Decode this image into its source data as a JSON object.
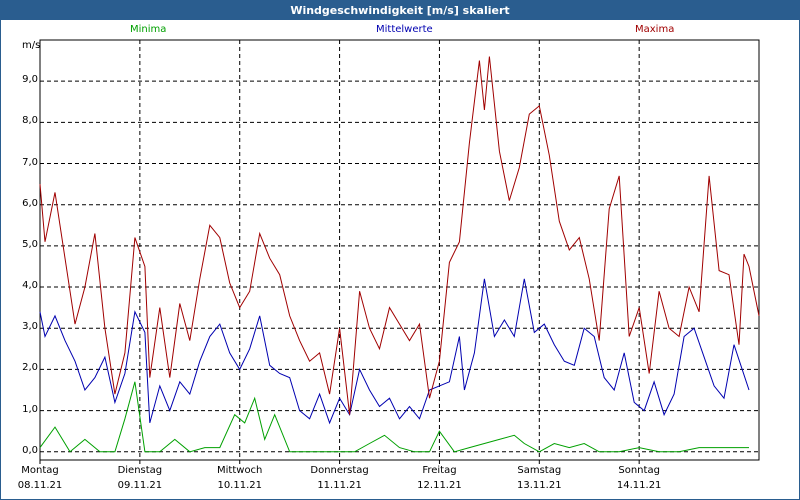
{
  "window": {
    "title": "Windgeschwindigkeit [m/s] skaliert"
  },
  "chart_data": {
    "type": "line",
    "title": "Windgeschwindigkeit [m/s] skaliert",
    "ylabel": "m/s",
    "ylim": [
      -0.2,
      10.0
    ],
    "y_ticks": [
      "0,0",
      "1,0",
      "2,0",
      "3,0",
      "4,0",
      "5,0",
      "6,0",
      "7,0",
      "8,0",
      "9,0"
    ],
    "x_days": [
      {
        "day": "Montag",
        "date": "08.11.21"
      },
      {
        "day": "Dienstag",
        "date": "09.11.21"
      },
      {
        "day": "Mittwoch",
        "date": "10.11.21"
      },
      {
        "day": "Donnerstag",
        "date": "11.11.21"
      },
      {
        "day": "Freitag",
        "date": "12.11.21"
      },
      {
        "day": "Samstag",
        "date": "13.11.21"
      },
      {
        "day": "Sonntag",
        "date": "14.11.21"
      }
    ],
    "x_range_days": [
      0,
      7.2
    ],
    "grid": true,
    "series": [
      {
        "name": "Minima",
        "color": "#00a000",
        "points": [
          [
            0,
            0.1
          ],
          [
            0.15,
            0.6
          ],
          [
            0.3,
            0.0
          ],
          [
            0.45,
            0.3
          ],
          [
            0.6,
            0.0
          ],
          [
            0.75,
            0.0
          ],
          [
            0.85,
            0.8
          ],
          [
            0.95,
            1.7
          ],
          [
            1.05,
            0.0
          ],
          [
            1.2,
            0.0
          ],
          [
            1.35,
            0.3
          ],
          [
            1.5,
            0.0
          ],
          [
            1.65,
            0.1
          ],
          [
            1.8,
            0.1
          ],
          [
            1.95,
            0.9
          ],
          [
            2.05,
            0.7
          ],
          [
            2.15,
            1.3
          ],
          [
            2.25,
            0.3
          ],
          [
            2.35,
            0.9
          ],
          [
            2.5,
            0.0
          ],
          [
            2.7,
            0.0
          ],
          [
            2.85,
            0.0
          ],
          [
            3.0,
            0.0
          ],
          [
            3.15,
            0.0
          ],
          [
            3.3,
            0.2
          ],
          [
            3.45,
            0.4
          ],
          [
            3.6,
            0.1
          ],
          [
            3.75,
            0.0
          ],
          [
            3.9,
            0.0
          ],
          [
            4.0,
            0.5
          ],
          [
            4.15,
            0.0
          ],
          [
            4.3,
            0.1
          ],
          [
            4.45,
            0.2
          ],
          [
            4.6,
            0.3
          ],
          [
            4.75,
            0.4
          ],
          [
            4.85,
            0.2
          ],
          [
            5.0,
            0.0
          ],
          [
            5.15,
            0.2
          ],
          [
            5.3,
            0.1
          ],
          [
            5.45,
            0.2
          ],
          [
            5.6,
            0.0
          ],
          [
            5.8,
            0.0
          ],
          [
            6.0,
            0.1
          ],
          [
            6.2,
            0.0
          ],
          [
            6.4,
            0.0
          ],
          [
            6.6,
            0.1
          ],
          [
            6.8,
            0.1
          ],
          [
            7.0,
            0.1
          ],
          [
            7.1,
            0.1
          ]
        ]
      },
      {
        "name": "Mittelwerte",
        "color": "#0000b0",
        "points": [
          [
            0,
            3.4
          ],
          [
            0.05,
            2.8
          ],
          [
            0.15,
            3.3
          ],
          [
            0.25,
            2.7
          ],
          [
            0.35,
            2.2
          ],
          [
            0.45,
            1.5
          ],
          [
            0.55,
            1.8
          ],
          [
            0.65,
            2.3
          ],
          [
            0.75,
            1.2
          ],
          [
            0.85,
            1.9
          ],
          [
            0.95,
            3.4
          ],
          [
            1.05,
            2.9
          ],
          [
            1.1,
            0.7
          ],
          [
            1.2,
            1.6
          ],
          [
            1.3,
            1.0
          ],
          [
            1.4,
            1.7
          ],
          [
            1.5,
            1.4
          ],
          [
            1.6,
            2.2
          ],
          [
            1.7,
            2.8
          ],
          [
            1.8,
            3.1
          ],
          [
            1.9,
            2.4
          ],
          [
            2.0,
            2.0
          ],
          [
            2.1,
            2.5
          ],
          [
            2.2,
            3.3
          ],
          [
            2.3,
            2.1
          ],
          [
            2.4,
            1.9
          ],
          [
            2.5,
            1.8
          ],
          [
            2.6,
            1.0
          ],
          [
            2.7,
            0.8
          ],
          [
            2.8,
            1.4
          ],
          [
            2.9,
            0.7
          ],
          [
            3.0,
            1.3
          ],
          [
            3.1,
            0.9
          ],
          [
            3.2,
            2.0
          ],
          [
            3.3,
            1.5
          ],
          [
            3.4,
            1.1
          ],
          [
            3.5,
            1.3
          ],
          [
            3.6,
            0.8
          ],
          [
            3.7,
            1.1
          ],
          [
            3.8,
            0.8
          ],
          [
            3.9,
            1.5
          ],
          [
            4.0,
            1.6
          ],
          [
            4.1,
            1.7
          ],
          [
            4.2,
            2.8
          ],
          [
            4.25,
            1.5
          ],
          [
            4.35,
            2.4
          ],
          [
            4.45,
            4.2
          ],
          [
            4.55,
            2.8
          ],
          [
            4.65,
            3.2
          ],
          [
            4.75,
            2.8
          ],
          [
            4.85,
            4.2
          ],
          [
            4.95,
            2.9
          ],
          [
            5.05,
            3.1
          ],
          [
            5.15,
            2.6
          ],
          [
            5.25,
            2.2
          ],
          [
            5.35,
            2.1
          ],
          [
            5.45,
            3.0
          ],
          [
            5.55,
            2.8
          ],
          [
            5.65,
            1.8
          ],
          [
            5.75,
            1.5
          ],
          [
            5.85,
            2.4
          ],
          [
            5.95,
            1.2
          ],
          [
            6.05,
            1.0
          ],
          [
            6.15,
            1.7
          ],
          [
            6.25,
            0.9
          ],
          [
            6.35,
            1.4
          ],
          [
            6.45,
            2.8
          ],
          [
            6.55,
            3.0
          ],
          [
            6.65,
            2.3
          ],
          [
            6.75,
            1.6
          ],
          [
            6.85,
            1.3
          ],
          [
            6.95,
            2.6
          ],
          [
            7.1,
            1.5
          ]
        ]
      },
      {
        "name": "Maxima",
        "color": "#a00000",
        "points": [
          [
            0,
            6.5
          ],
          [
            0.05,
            5.1
          ],
          [
            0.15,
            6.3
          ],
          [
            0.25,
            4.7
          ],
          [
            0.35,
            3.1
          ],
          [
            0.45,
            4.0
          ],
          [
            0.55,
            5.3
          ],
          [
            0.65,
            3.0
          ],
          [
            0.75,
            1.4
          ],
          [
            0.85,
            2.4
          ],
          [
            0.95,
            5.2
          ],
          [
            1.05,
            4.5
          ],
          [
            1.1,
            1.8
          ],
          [
            1.2,
            3.5
          ],
          [
            1.3,
            1.8
          ],
          [
            1.4,
            3.6
          ],
          [
            1.5,
            2.7
          ],
          [
            1.6,
            4.2
          ],
          [
            1.7,
            5.5
          ],
          [
            1.8,
            5.2
          ],
          [
            1.9,
            4.1
          ],
          [
            2.0,
            3.5
          ],
          [
            2.1,
            3.9
          ],
          [
            2.2,
            5.3
          ],
          [
            2.3,
            4.7
          ],
          [
            2.4,
            4.3
          ],
          [
            2.5,
            3.3
          ],
          [
            2.6,
            2.7
          ],
          [
            2.7,
            2.2
          ],
          [
            2.8,
            2.4
          ],
          [
            2.9,
            1.4
          ],
          [
            3.0,
            3.0
          ],
          [
            3.1,
            0.9
          ],
          [
            3.2,
            3.9
          ],
          [
            3.3,
            3.0
          ],
          [
            3.4,
            2.5
          ],
          [
            3.5,
            3.5
          ],
          [
            3.6,
            3.1
          ],
          [
            3.7,
            2.7
          ],
          [
            3.8,
            3.1
          ],
          [
            3.9,
            1.3
          ],
          [
            4.0,
            2.2
          ],
          [
            4.1,
            4.6
          ],
          [
            4.2,
            5.1
          ],
          [
            4.3,
            7.5
          ],
          [
            4.4,
            9.5
          ],
          [
            4.45,
            8.3
          ],
          [
            4.5,
            9.6
          ],
          [
            4.6,
            7.3
          ],
          [
            4.7,
            6.1
          ],
          [
            4.8,
            6.9
          ],
          [
            4.9,
            8.2
          ],
          [
            5.0,
            8.4
          ],
          [
            5.1,
            7.2
          ],
          [
            5.2,
            5.6
          ],
          [
            5.3,
            4.9
          ],
          [
            5.4,
            5.2
          ],
          [
            5.5,
            4.2
          ],
          [
            5.6,
            2.7
          ],
          [
            5.7,
            5.9
          ],
          [
            5.8,
            6.7
          ],
          [
            5.9,
            2.8
          ],
          [
            6.0,
            3.5
          ],
          [
            6.1,
            1.9
          ],
          [
            6.2,
            3.9
          ],
          [
            6.3,
            3.0
          ],
          [
            6.4,
            2.8
          ],
          [
            6.5,
            4.0
          ],
          [
            6.6,
            3.4
          ],
          [
            6.7,
            6.7
          ],
          [
            6.8,
            4.4
          ],
          [
            6.9,
            4.3
          ],
          [
            7.0,
            2.6
          ],
          [
            7.05,
            4.8
          ],
          [
            7.1,
            4.5
          ],
          [
            7.2,
            3.3
          ]
        ]
      }
    ]
  }
}
